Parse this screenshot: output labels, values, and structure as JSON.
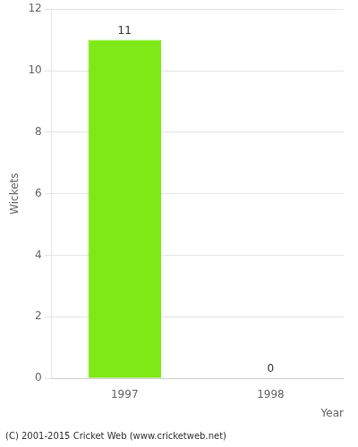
{
  "chart_data": {
    "type": "bar",
    "categories": [
      "1997",
      "1998"
    ],
    "values": [
      11,
      0
    ],
    "color": "#7FE817",
    "ylabel": "Wickets",
    "xlabel": "Year",
    "ylim": [
      0,
      12
    ],
    "yticks": [
      0,
      2,
      4,
      6,
      8,
      10,
      12
    ],
    "grid": true,
    "data_labels": true,
    "footer": "(C) 2001-2015 Cricket Web (www.cricketweb.net)"
  }
}
